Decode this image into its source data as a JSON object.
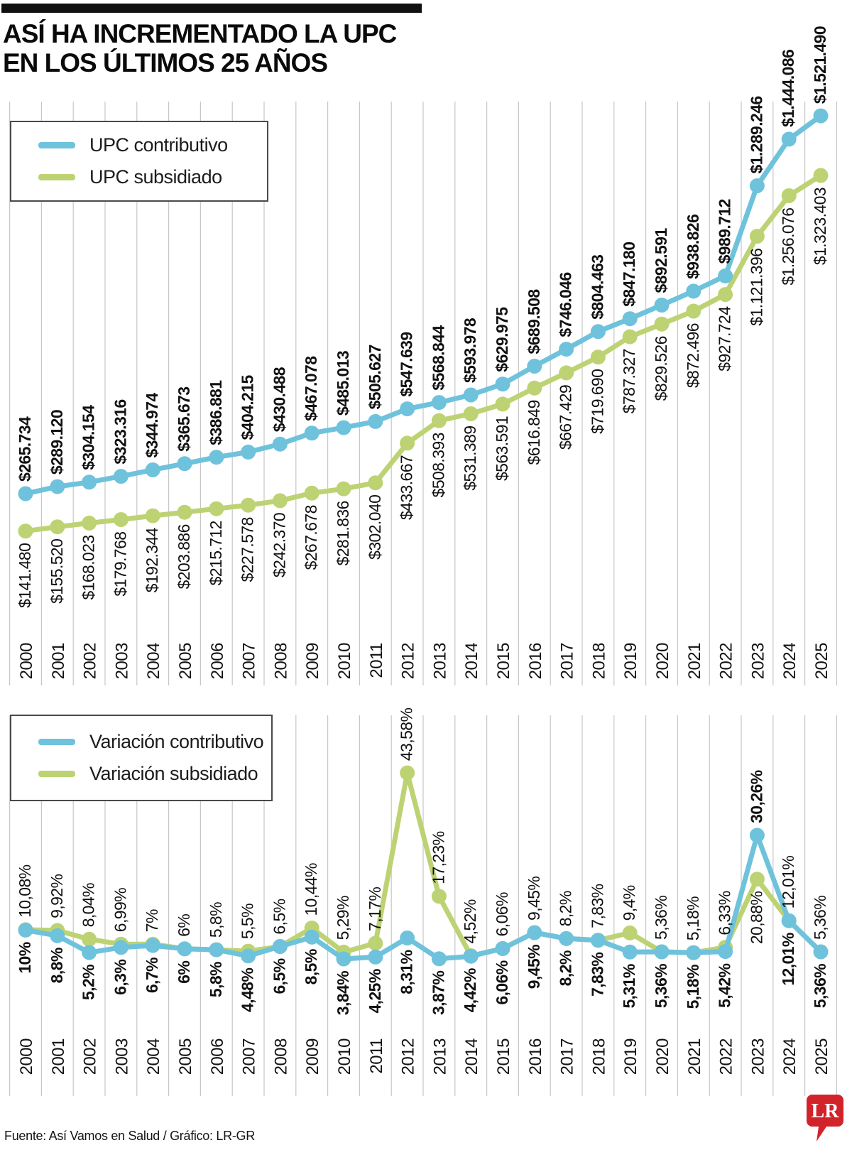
{
  "title": {
    "line1": "ASÍ HA INCREMENTADO LA UPC",
    "line2": "EN LOS ÚLTIMOS 25 AÑOS"
  },
  "colors": {
    "contributivo": "#6FC2DC",
    "subsidiado": "#BDD373",
    "grid": "#C6C6C6",
    "text": "#111111",
    "logo_red": "#D2232A"
  },
  "legend_upc": {
    "items": [
      {
        "label": "UPC contributivo",
        "color_key": "contributivo"
      },
      {
        "label": "UPC subsidiado",
        "color_key": "subsidiado"
      }
    ]
  },
  "legend_var": {
    "items": [
      {
        "label": "Variación contributivo",
        "color_key": "contributivo"
      },
      {
        "label": "Variación subsidiado",
        "color_key": "subsidiado"
      }
    ]
  },
  "years": [
    "2000",
    "2001",
    "2002",
    "2003",
    "2004",
    "2005",
    "2006",
    "2007",
    "2008",
    "2009",
    "2010",
    "2011",
    "2012",
    "2013",
    "2014",
    "2015",
    "2016",
    "2017",
    "2018",
    "2019",
    "2020",
    "2021",
    "2022",
    "2023",
    "2024",
    "2025"
  ],
  "chart_data": [
    {
      "type": "line",
      "title": "UPC anual en pesos 2000-2025",
      "x": [
        "2000",
        "2001",
        "2002",
        "2003",
        "2004",
        "2005",
        "2006",
        "2007",
        "2008",
        "2009",
        "2010",
        "2011",
        "2012",
        "2013",
        "2014",
        "2015",
        "2016",
        "2017",
        "2018",
        "2019",
        "2020",
        "2021",
        "2022",
        "2023",
        "2024",
        "2025"
      ],
      "ylim": [
        0,
        1600000
      ],
      "grid": "vertical",
      "legend_position": "top-left",
      "series": [
        {
          "name": "UPC contributivo",
          "color_key": "contributivo",
          "values": [
            265734,
            289120,
            304154,
            323316,
            344974,
            365673,
            386881,
            404215,
            430488,
            467078,
            485013,
            505627,
            547639,
            568844,
            593978,
            629975,
            689508,
            746046,
            804463,
            847180,
            892591,
            938826,
            989712,
            1289246,
            1444086,
            1521490
          ],
          "labels": [
            "$265.734",
            "$289.120",
            "$304.154",
            "$323.316",
            "$344.974",
            "$365.673",
            "$386.881",
            "$404.215",
            "$430.488",
            "$467.078",
            "$485.013",
            "$505.627",
            "$547.639",
            "$568.844",
            "$593.978",
            "$629.975",
            "$689.508",
            "$746.046",
            "$804.463",
            "$847.180",
            "$892.591",
            "$938.826",
            "$989.712",
            "$1.289.246",
            "$1.444.086",
            "$1.521.490"
          ],
          "bold": true,
          "label_positions": [
            "above",
            "above",
            "above",
            "above",
            "above",
            "above",
            "above",
            "above",
            "above",
            "above",
            "above",
            "above",
            "above",
            "above",
            "above",
            "above",
            "above",
            "above",
            "above",
            "above",
            "above",
            "above",
            "above",
            "above",
            "above",
            "above"
          ]
        },
        {
          "name": "UPC subsidiado",
          "color_key": "subsidiado",
          "values": [
            141480,
            155520,
            168023,
            179768,
            192344,
            203886,
            215712,
            227578,
            242370,
            267678,
            281836,
            302040,
            433667,
            508393,
            531389,
            563591,
            616849,
            667429,
            719690,
            787327,
            829526,
            872496,
            927724,
            1121396,
            1256076,
            1323403
          ],
          "labels": [
            "$141.480",
            "$155.520",
            "$168.023",
            "$179.768",
            "$192.344",
            "$203.886",
            "$215.712",
            "$227.578",
            "$242.370",
            "$267.678",
            "$281.836",
            "$302.040",
            "$433.667",
            "$508.393",
            "$531.389",
            "$563.591",
            "$616.849",
            "$667.429",
            "$719.690",
            "$787.327",
            "$829.526",
            "$872.496",
            "$927.724",
            "$1.121.396",
            "$1.256.076",
            "$1.323.403"
          ],
          "bold": false,
          "label_positions": [
            "below",
            "below",
            "below",
            "below",
            "below",
            "below",
            "below",
            "below",
            "below",
            "below",
            "below",
            "below",
            "below",
            "below",
            "below",
            "below",
            "below",
            "below",
            "below",
            "below",
            "below",
            "below",
            "below",
            "below",
            "below",
            "below"
          ]
        }
      ]
    },
    {
      "type": "line",
      "title": "Variación anual de la UPC (%) 2000-2025",
      "x": [
        "2000",
        "2001",
        "2002",
        "2003",
        "2004",
        "2005",
        "2006",
        "2007",
        "2008",
        "2009",
        "2010",
        "2011",
        "2012",
        "2013",
        "2014",
        "2015",
        "2016",
        "2017",
        "2018",
        "2019",
        "2020",
        "2021",
        "2022",
        "2023",
        "2024",
        "2025"
      ],
      "ylim": [
        0,
        48
      ],
      "grid": "vertical",
      "legend_position": "top-left",
      "series": [
        {
          "name": "Variación contributivo",
          "color_key": "contributivo",
          "values": [
            10,
            8.8,
            5.2,
            6.3,
            6.7,
            6,
            5.8,
            4.48,
            6.5,
            8.5,
            3.84,
            4.25,
            8.31,
            3.87,
            4.42,
            6.06,
            9.45,
            8.2,
            7.83,
            5.31,
            5.36,
            5.18,
            5.42,
            30.26,
            12.01,
            5.36
          ],
          "labels": [
            "10%",
            "8,8%",
            "5,2%",
            "6,3%",
            "6,7%",
            "6%",
            "5,8%",
            "4,48%",
            "6,5%",
            "8,5%",
            "3,84%",
            "4,25%",
            "8,31%",
            "3,87%",
            "4,42%",
            "6,06%",
            "9,45%",
            "8,2%",
            "7,83%",
            "5,31%",
            "5,36%",
            "5,18%",
            "5,42%",
            "30,26%",
            "12,01%",
            "5,36%"
          ],
          "bold": true,
          "label_positions": [
            "below",
            "below",
            "below",
            "below",
            "below",
            "below",
            "below",
            "below",
            "below",
            "below",
            "below",
            "below",
            "below",
            "below",
            "below",
            "below",
            "below",
            "below",
            "below",
            "below",
            "below",
            "below",
            "below",
            "above",
            "below",
            "below"
          ]
        },
        {
          "name": "Variación subsidiado",
          "color_key": "subsidiado",
          "values": [
            10.08,
            9.92,
            8.04,
            6.99,
            7,
            6,
            5.8,
            5.5,
            6.5,
            10.44,
            5.29,
            7.17,
            43.58,
            17.23,
            4.52,
            6.06,
            9.45,
            8.2,
            7.83,
            9.4,
            5.36,
            5.18,
            6.33,
            20.88,
            12.01,
            5.36
          ],
          "labels": [
            "10,08%",
            "9,92%",
            "8,04%",
            "6,99%",
            "7%",
            "6%",
            "5,8%",
            "5,5%",
            "6,5%",
            "10,44%",
            "5,29%",
            "7,17%",
            "43,58%",
            "17,23%",
            "4,52%",
            "6,06%",
            "9,45%",
            "8,2%",
            "7,83%",
            "9,4%",
            "5,36%",
            "5,18%",
            "6,33%",
            "20,88%",
            "12,01%",
            "5,36%"
          ],
          "bold": false,
          "label_positions": [
            "above",
            "above",
            "above",
            "above",
            "above",
            "above",
            "above",
            "above",
            "above",
            "above",
            "above",
            "above",
            "above",
            "above",
            "above",
            "above",
            "above",
            "above",
            "above",
            "above",
            "above",
            "above",
            "above",
            "below",
            "above",
            "above"
          ]
        }
      ]
    }
  ],
  "footer": {
    "source": "Fuente: Así Vamos en Salud / Gráfico: LR-GR",
    "logo": "LR"
  }
}
